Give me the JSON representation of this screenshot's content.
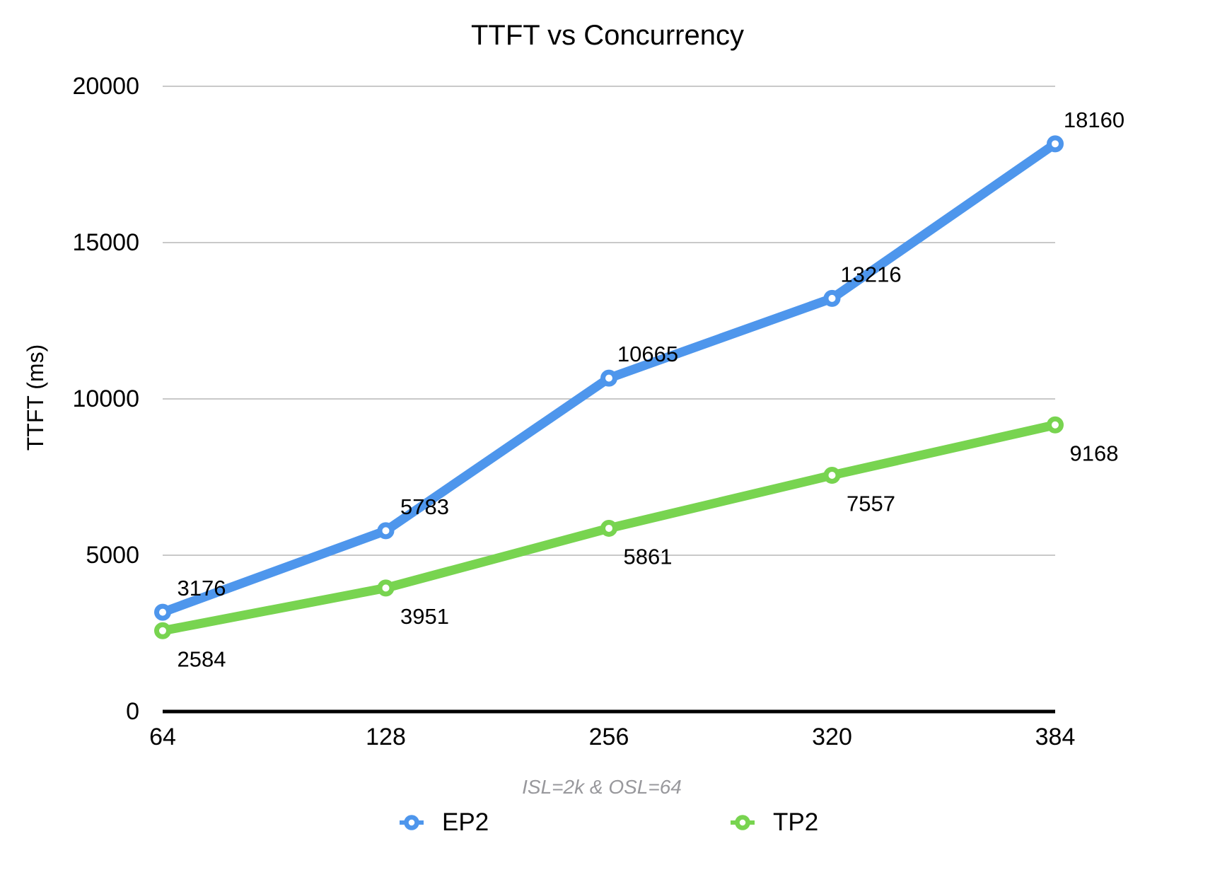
{
  "chart_data": {
    "type": "line",
    "title": "TTFT vs Concurrency",
    "subtitle": "ISL=2k & OSL=64",
    "ylabel": "TTFT (ms)",
    "xlabel": "",
    "categories": [
      "64",
      "128",
      "256",
      "320",
      "384"
    ],
    "series": [
      {
        "name": "EP2",
        "color": "#4E96EC",
        "values": [
          3176,
          5783,
          10665,
          13216,
          18160
        ],
        "label_position": "above"
      },
      {
        "name": "TP2",
        "color": "#78D450",
        "values": [
          2584,
          3951,
          5861,
          7557,
          9168
        ],
        "label_position": "below"
      }
    ],
    "y_ticks": [
      0,
      5000,
      10000,
      15000,
      20000
    ],
    "ylim": [
      0,
      20000
    ],
    "grid": "horizontal-only",
    "legend_position": "bottom",
    "colors": {
      "gridline": "#C9C9C9",
      "axis": "#000000",
      "subtitle_text": "#98989C",
      "series_ep2": "#4E96EC",
      "series_tp2": "#78D450"
    }
  }
}
